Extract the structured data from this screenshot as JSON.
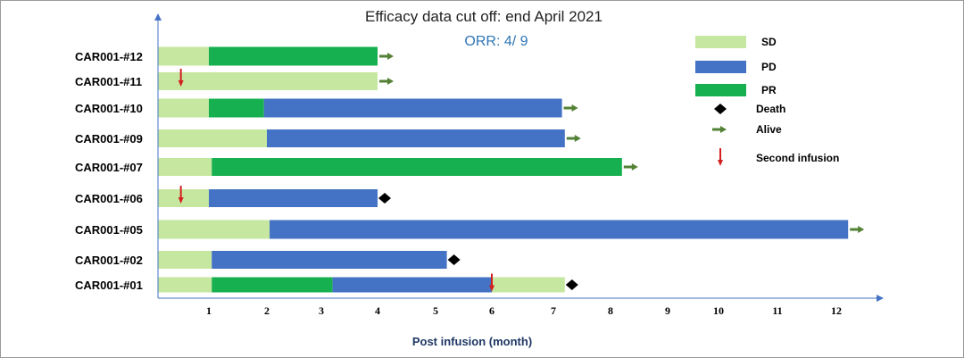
{
  "chart_data": {
    "type": "swimmer",
    "title": "Efficacy data cut off: end April 2021",
    "subtitle": "ORR: 4/ 9",
    "xlabel": "Post infusion (month)",
    "x_ticks": [
      "1",
      "2",
      "3",
      "4",
      "5",
      "6",
      "7",
      "8",
      "9",
      "10",
      "11",
      "12"
    ],
    "colors": {
      "SD": "#c6e79f",
      "PD": "#4472c4",
      "PR": "#17b050",
      "Death": "#000000",
      "Alive": "#538135",
      "Second infusion": "#d21f1f"
    },
    "legend": [
      {
        "label": "SD",
        "kind": "bar",
        "key": "SD"
      },
      {
        "label": "PD",
        "kind": "bar",
        "key": "PD"
      },
      {
        "label": "PR",
        "kind": "bar",
        "key": "PR"
      },
      {
        "label": "Death",
        "kind": "diamond",
        "key": "Death"
      },
      {
        "label": "Alive",
        "kind": "alive",
        "key": "Alive"
      },
      {
        "label": "Second infusion",
        "kind": "infusion",
        "key": "Second infusion"
      }
    ],
    "patients": [
      {
        "id": "CAR001-#12",
        "segments": [
          {
            "status": "SD",
            "start": 0,
            "end": 1.0
          },
          {
            "status": "PR",
            "start": 1.0,
            "end": 4.0
          }
        ],
        "outcome": "alive",
        "second_infusion": null
      },
      {
        "id": "CAR001-#11",
        "segments": [
          {
            "status": "SD",
            "start": 0,
            "end": 4.0
          }
        ],
        "outcome": "alive",
        "second_infusion": 0.45
      },
      {
        "id": "CAR001-#10",
        "segments": [
          {
            "status": "SD",
            "start": 0,
            "end": 1.0
          },
          {
            "status": "PR",
            "start": 1.0,
            "end": 1.95
          },
          {
            "status": "PD",
            "start": 1.95,
            "end": 7.15
          }
        ],
        "outcome": "alive",
        "second_infusion": null
      },
      {
        "id": "CAR001-#09",
        "segments": [
          {
            "status": "SD",
            "start": 0,
            "end": 2.0
          },
          {
            "status": "PD",
            "start": 2.0,
            "end": 7.2
          }
        ],
        "outcome": "alive",
        "second_infusion": null
      },
      {
        "id": "CAR001-#07",
        "segments": [
          {
            "status": "SD",
            "start": 0,
            "end": 1.05
          },
          {
            "status": "PR",
            "start": 1.05,
            "end": 8.2
          }
        ],
        "outcome": "alive",
        "second_infusion": null
      },
      {
        "id": "CAR001-#06",
        "segments": [
          {
            "status": "SD",
            "start": 0,
            "end": 1.0
          },
          {
            "status": "PD",
            "start": 1.0,
            "end": 4.0
          }
        ],
        "outcome": "death",
        "second_infusion": 0.45
      },
      {
        "id": "CAR001-#05",
        "segments": [
          {
            "status": "SD",
            "start": 0,
            "end": 2.05
          },
          {
            "status": "PD",
            "start": 2.05,
            "end": 12.2
          }
        ],
        "outcome": "alive",
        "second_infusion": null
      },
      {
        "id": "CAR001-#02",
        "segments": [
          {
            "status": "SD",
            "start": 0,
            "end": 1.05
          },
          {
            "status": "PD",
            "start": 1.05,
            "end": 5.2
          }
        ],
        "outcome": "death",
        "second_infusion": null
      },
      {
        "id": "CAR001-#01",
        "segments": [
          {
            "status": "SD",
            "start": 0,
            "end": 1.05
          },
          {
            "status": "PR",
            "start": 1.05,
            "end": 3.2
          },
          {
            "status": "PD",
            "start": 3.2,
            "end": 6.0
          },
          {
            "status": "SD",
            "start": 6.0,
            "end": 7.2
          }
        ],
        "outcome": "death",
        "second_infusion": 6.0
      }
    ]
  }
}
